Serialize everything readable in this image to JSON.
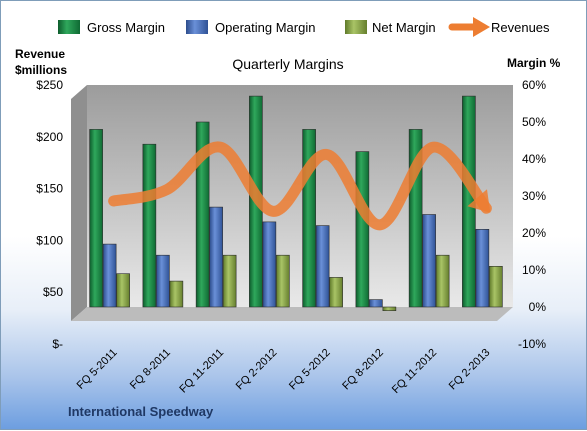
{
  "chart_data": {
    "type": "bar",
    "title": "Quarterly Margins",
    "company": "International Speedway",
    "left_axis_title": [
      "Revenue",
      "$millions"
    ],
    "right_axis_title": "Margin %",
    "categories": [
      "FQ 5-2011",
      "FQ 8-2011",
      "FQ 11-2011",
      "FQ 2-2012",
      "FQ 5-2012",
      "FQ 8-2012",
      "FQ 11-2012",
      "FQ 2-2013"
    ],
    "left_axis": {
      "min": 0,
      "max": 250,
      "step": 50,
      "tick_labels": [
        "$-",
        "$50",
        "$100",
        "$150",
        "$200",
        "$250"
      ]
    },
    "right_axis": {
      "min": -10,
      "max": 60,
      "step": 10,
      "unit": "%",
      "tick_labels": [
        "-10%",
        "0%",
        "10%",
        "20%",
        "30%",
        "40%",
        "50%",
        "60%"
      ]
    },
    "series": [
      {
        "name": "Gross Margin",
        "axis": "right",
        "type": "bar",
        "color": "#1e8a4a",
        "values": [
          48,
          44,
          50,
          57,
          48,
          42,
          48,
          57
        ]
      },
      {
        "name": "Operating Margin",
        "axis": "right",
        "type": "bar",
        "color": "#4a72c0",
        "values": [
          17,
          14,
          27,
          23,
          22,
          2,
          25,
          21
        ]
      },
      {
        "name": "Net Margin",
        "axis": "right",
        "type": "bar",
        "color": "#8aaa45",
        "values": [
          9,
          7,
          14,
          14,
          8,
          -1,
          14,
          11
        ]
      },
      {
        "name": "Revenues",
        "axis": "left",
        "type": "line",
        "color": "#ed7d31",
        "values": [
          138,
          149,
          190,
          128,
          183,
          115,
          190,
          131
        ]
      }
    ],
    "grid": false,
    "legend_position": "top"
  }
}
